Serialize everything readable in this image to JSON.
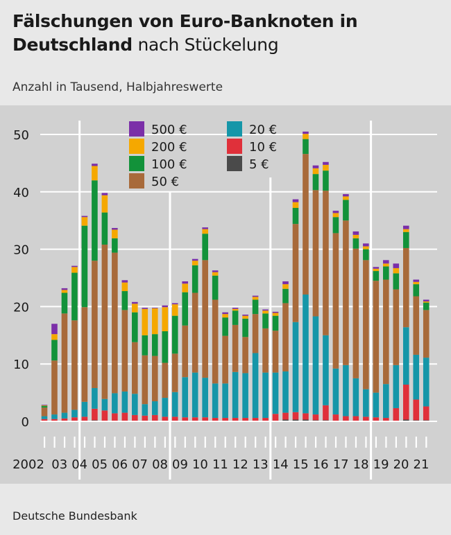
{
  "title_part1": "Fälschungen von Euro-Banknoten in",
  "title_part2a": "Deutschland",
  "title_part2b": "nach Stückelung",
  "subtitle": "Anzahl in Tausend, Halbjahreswerte",
  "source": "Deutsche Bundesbank",
  "colors": {
    "500": "#7b2fa8",
    "200": "#f5a800",
    "100": "#12923a",
    "50": "#a86a3a",
    "20": "#1596a8",
    "10": "#e0303a",
    "5": "#4a4a4a",
    "background": "#d1d1d1",
    "grid": "#ffffff"
  },
  "chart_data": {
    "type": "bar",
    "stacked": true,
    "ylim": [
      0,
      50
    ],
    "yticks": [
      0,
      10,
      20,
      30,
      40,
      50
    ],
    "grid": true,
    "legend_position": "top",
    "legend": [
      {
        "key": "500",
        "label": "500 €"
      },
      {
        "key": "200",
        "label": "200 €"
      },
      {
        "key": "100",
        "label": "100 €"
      },
      {
        "key": "50",
        "label": "50 €"
      },
      {
        "key": "20",
        "label": "20 €"
      },
      {
        "key": "10",
        "label": "10 €"
      },
      {
        "key": "5",
        "label": "5 €"
      }
    ],
    "year_labels": [
      "2002",
      "03",
      "04",
      "05",
      "06",
      "07",
      "08",
      "09",
      "10",
      "11",
      "12",
      "13",
      "14",
      "15",
      "16",
      "17",
      "18",
      "19",
      "20",
      "21"
    ],
    "series_order": [
      "5",
      "10",
      "20",
      "50",
      "100",
      "200",
      "500"
    ],
    "bars": [
      {
        "5": 0.1,
        "10": 0.3,
        "20": 0.5,
        "50": 1.5,
        "100": 0.3,
        "200": 0.1,
        "500": 0.1
      },
      {
        "5": 0.1,
        "10": 0.3,
        "20": 0.8,
        "50": 9.4,
        "100": 3.6,
        "200": 1.0,
        "500": 1.8
      },
      {
        "5": 0.1,
        "10": 0.4,
        "20": 1.0,
        "50": 17.3,
        "100": 3.6,
        "200": 0.5,
        "500": 0.3
      },
      {
        "5": 0.1,
        "10": 0.6,
        "20": 1.3,
        "50": 15.6,
        "100": 8.3,
        "200": 1.0,
        "500": 0.2
      },
      {
        "5": 0.1,
        "10": 0.7,
        "20": 2.6,
        "50": 16.5,
        "100": 14.2,
        "200": 1.5,
        "500": 0.2
      },
      {
        "5": 0.2,
        "10": 2.0,
        "20": 3.6,
        "50": 22.2,
        "100": 14.0,
        "200": 2.5,
        "500": 0.4
      },
      {
        "5": 0.1,
        "10": 1.8,
        "20": 2.0,
        "50": 26.9,
        "100": 5.6,
        "200": 3.0,
        "500": 0.4
      },
      {
        "5": 0.1,
        "10": 1.3,
        "20": 3.5,
        "50": 24.5,
        "100": 2.5,
        "200": 1.5,
        "500": 0.3
      },
      {
        "5": 0.1,
        "10": 1.4,
        "20": 3.7,
        "50": 14.2,
        "100": 3.3,
        "200": 1.5,
        "500": 0.4
      },
      {
        "5": 0.1,
        "10": 1.0,
        "20": 3.7,
        "50": 9.0,
        "100": 5.2,
        "200": 1.5,
        "500": 0.3
      },
      {
        "5": 0.1,
        "10": 0.9,
        "20": 2.0,
        "50": 8.5,
        "100": 3.5,
        "200": 4.6,
        "500": 0.2
      },
      {
        "5": 0.1,
        "10": 1.0,
        "20": 2.4,
        "50": 7.9,
        "100": 3.8,
        "200": 4.5,
        "500": 0.1
      },
      {
        "5": 0.1,
        "10": 0.7,
        "20": 3.3,
        "50": 6.1,
        "100": 5.5,
        "200": 4.2,
        "500": 0.3
      },
      {
        "5": 0.1,
        "10": 0.7,
        "20": 4.3,
        "50": 6.7,
        "100": 6.6,
        "200": 2.0,
        "500": 0.2
      },
      {
        "5": 0.1,
        "10": 0.6,
        "20": 7.0,
        "50": 9.0,
        "100": 5.8,
        "200": 1.5,
        "500": 0.4
      },
      {
        "5": 0.1,
        "10": 0.6,
        "20": 7.8,
        "50": 13.9,
        "100": 4.8,
        "200": 0.8,
        "500": 0.3
      },
      {
        "5": 0.1,
        "10": 0.6,
        "20": 6.9,
        "50": 20.5,
        "100": 4.6,
        "200": 0.8,
        "500": 0.3
      },
      {
        "5": 0.1,
        "10": 0.5,
        "20": 6.0,
        "50": 14.6,
        "100": 4.2,
        "200": 0.6,
        "500": 0.3
      },
      {
        "5": 0.1,
        "10": 0.5,
        "20": 6.0,
        "50": 8.3,
        "100": 3.2,
        "200": 0.6,
        "500": 0.3
      },
      {
        "5": 0.1,
        "10": 0.5,
        "20": 8.0,
        "50": 8.2,
        "100": 2.5,
        "200": 0.3,
        "500": 0.2
      },
      {
        "5": 0.1,
        "10": 0.5,
        "20": 7.8,
        "50": 6.3,
        "100": 3.2,
        "200": 0.5,
        "500": 0.2
      },
      {
        "5": 0.1,
        "10": 0.5,
        "20": 11.3,
        "50": 6.8,
        "100": 2.5,
        "200": 0.5,
        "500": 0.2
      },
      {
        "5": 0.1,
        "10": 0.5,
        "20": 7.9,
        "50": 7.7,
        "100": 2.6,
        "200": 0.5,
        "500": 0.2
      },
      {
        "5": 0.1,
        "10": 1.2,
        "20": 7.2,
        "50": 7.3,
        "100": 2.6,
        "200": 0.5,
        "500": 0.2
      },
      {
        "5": 0.3,
        "10": 1.2,
        "20": 7.2,
        "50": 11.9,
        "100": 2.5,
        "200": 0.8,
        "500": 0.5
      },
      {
        "5": 0.3,
        "10": 1.3,
        "20": 15.7,
        "50": 17.1,
        "100": 2.8,
        "200": 1.0,
        "500": 0.5
      },
      {
        "5": 0.3,
        "10": 1.1,
        "20": 20.7,
        "50": 24.5,
        "100": 2.6,
        "200": 0.9,
        "500": 0.4
      },
      {
        "5": 0.2,
        "10": 1.0,
        "20": 17.1,
        "50": 22.0,
        "100": 2.8,
        "200": 1.0,
        "500": 0.5
      },
      {
        "5": 0.2,
        "10": 2.6,
        "20": 12.2,
        "50": 25.2,
        "100": 3.5,
        "200": 1.0,
        "500": 0.5
      },
      {
        "5": 0.1,
        "10": 1.1,
        "20": 8.0,
        "50": 23.6,
        "100": 2.8,
        "200": 0.7,
        "500": 0.4
      },
      {
        "5": 0.1,
        "10": 0.8,
        "20": 8.9,
        "50": 25.2,
        "100": 3.6,
        "200": 0.6,
        "500": 0.4
      },
      {
        "5": 0.1,
        "10": 0.8,
        "20": 6.6,
        "50": 22.6,
        "100": 1.8,
        "200": 0.6,
        "500": 0.6
      },
      {
        "5": 0.1,
        "10": 0.7,
        "20": 4.8,
        "50": 22.5,
        "100": 1.9,
        "200": 0.5,
        "500": 0.5
      },
      {
        "5": 0.1,
        "10": 0.6,
        "20": 4.3,
        "50": 19.5,
        "100": 1.7,
        "200": 0.4,
        "500": 0.3
      },
      {
        "5": 0.1,
        "10": 0.5,
        "20": 5.9,
        "50": 18.2,
        "100": 2.3,
        "200": 0.5,
        "500": 0.6
      },
      {
        "5": 0.1,
        "10": 2.2,
        "20": 7.5,
        "50": 13.2,
        "100": 2.8,
        "200": 0.9,
        "500": 0.8
      },
      {
        "5": 0.3,
        "10": 6.1,
        "20": 10.0,
        "50": 13.8,
        "100": 2.8,
        "200": 0.5,
        "500": 0.6
      },
      {
        "5": 0.2,
        "10": 3.6,
        "20": 7.8,
        "50": 10.2,
        "100": 2.1,
        "200": 0.4,
        "500": 0.4
      },
      {
        "5": 0.2,
        "10": 2.4,
        "20": 8.5,
        "50": 8.3,
        "100": 1.3,
        "200": 0.2,
        "500": 0.3
      }
    ]
  }
}
